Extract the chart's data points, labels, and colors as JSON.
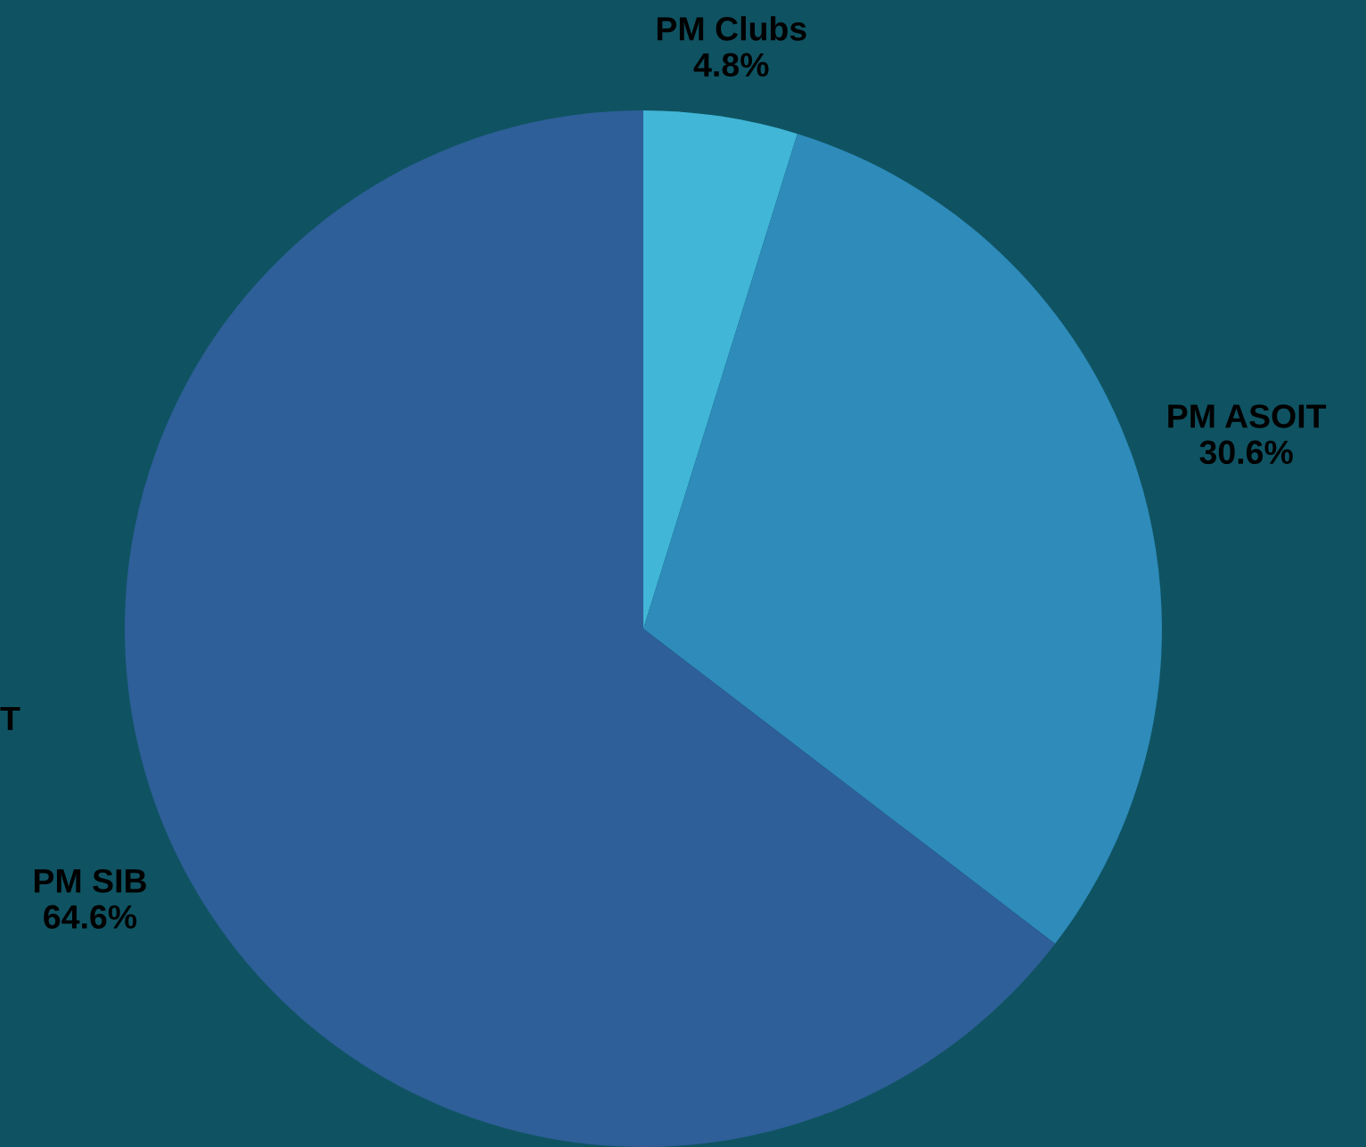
{
  "chart_data": {
    "type": "pie",
    "categories": [
      "PM Clubs",
      "PM ASOIT",
      "PM SIB"
    ],
    "values": [
      4.8,
      30.6,
      64.6
    ],
    "value_labels": [
      "4.8%",
      "30.6%",
      "64.6%"
    ],
    "colors": [
      "#41b6d6",
      "#2e8bba",
      "#2e5f98"
    ],
    "annotations": [
      "T"
    ]
  }
}
